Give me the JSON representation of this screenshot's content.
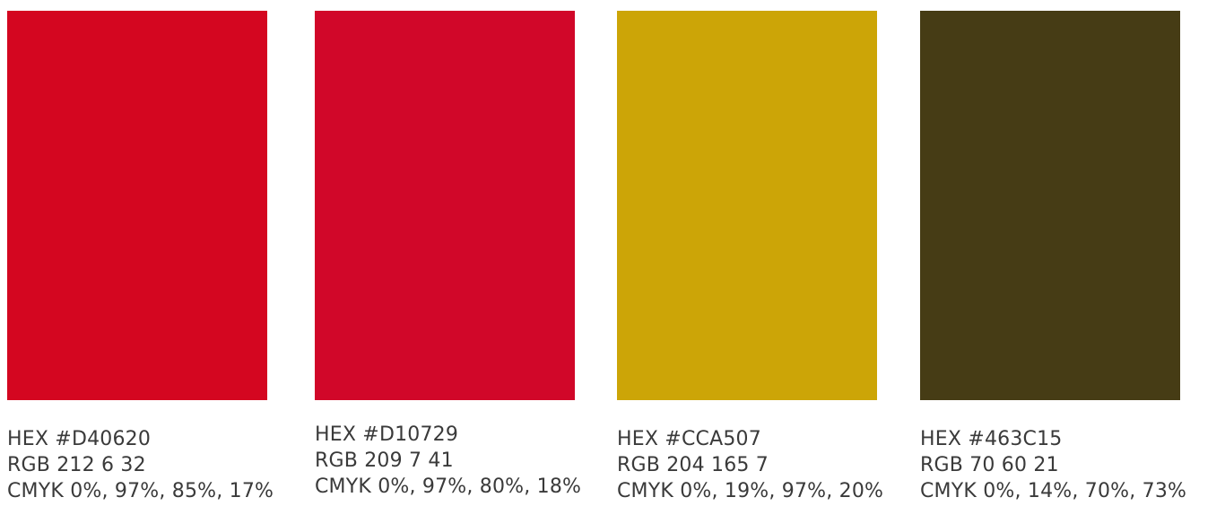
{
  "swatches": [
    {
      "color": "#D40620",
      "hex": "HEX #D40620",
      "rgb": "RGB 212 6 32",
      "cmyk": "CMYK 0%, 97%, 85%, 17%"
    },
    {
      "color": "#D10729",
      "hex": "HEX #D10729",
      "rgb": "RGB 209 7 41",
      "cmyk": "CMYK 0%, 97%, 80%, 18%"
    },
    {
      "color": "#CCA507",
      "hex": "HEX #CCA507",
      "rgb": "RGB 204 165 7",
      "cmyk": "CMYK 0%, 19%, 97%, 20%"
    },
    {
      "color": "#463C15",
      "hex": "HEX #463C15",
      "rgb": "RGB 70 60 21",
      "cmyk": "CMYK 0%, 14%, 70%, 73%"
    }
  ]
}
